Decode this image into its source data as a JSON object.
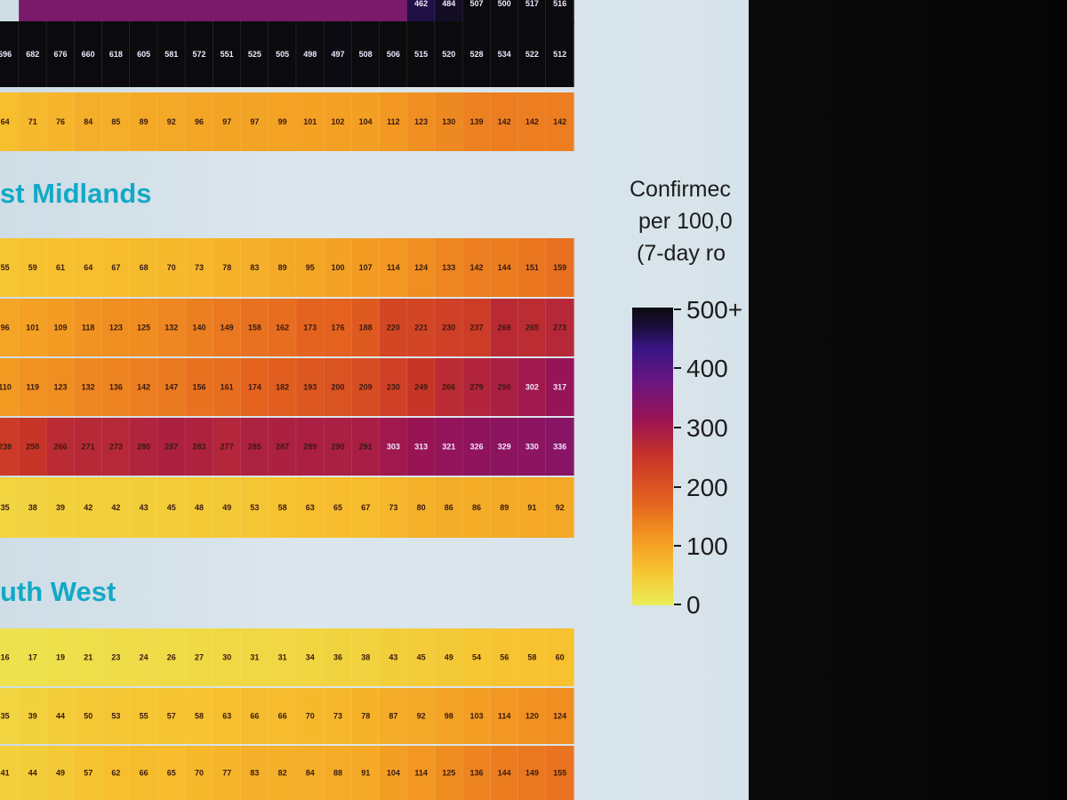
{
  "chart_data": {
    "type": "heatmap",
    "panels": [
      {
        "title": "",
        "rows": [
          {
            "values": [
              null,
              null,
              null,
              null,
              null,
              null,
              null,
              null,
              null,
              null,
              null,
              null,
              null,
              null,
              462,
              484,
              507,
              500,
              517,
              516
            ]
          },
          {
            "values": [
              696,
              682,
              676,
              660,
              618,
              605,
              581,
              572,
              551,
              525,
              505,
              498,
              497,
              508,
              506,
              515,
              520,
              528,
              534,
              522,
              512
            ]
          },
          {
            "values": [
              64,
              71,
              76,
              84,
              85,
              89,
              92,
              96,
              97,
              97,
              99,
              101,
              102,
              104,
              112,
              123,
              130,
              139,
              142,
              142,
              142
            ]
          }
        ]
      },
      {
        "title": "st Midlands",
        "rows": [
          {
            "values": [
              55,
              59,
              61,
              64,
              67,
              68,
              70,
              73,
              78,
              83,
              89,
              95,
              100,
              107,
              114,
              124,
              133,
              142,
              144,
              151,
              159
            ]
          },
          {
            "values": [
              96,
              101,
              109,
              118,
              123,
              125,
              132,
              140,
              149,
              158,
              162,
              173,
              176,
              188,
              220,
              221,
              230,
              237,
              269,
              265,
              273
            ]
          },
          {
            "values": [
              110,
              119,
              123,
              132,
              136,
              142,
              147,
              156,
              161,
              174,
              182,
              193,
              200,
              209,
              230,
              249,
              266,
              279,
              290,
              302,
              317
            ]
          },
          {
            "values": [
              238,
              250,
              266,
              271,
              273,
              280,
              287,
              283,
              277,
              285,
              287,
              289,
              290,
              291,
              303,
              313,
              321,
              326,
              329,
              330,
              336
            ]
          },
          {
            "values": [
              35,
              38,
              39,
              42,
              42,
              43,
              45,
              48,
              49,
              53,
              58,
              63,
              65,
              67,
              73,
              80,
              86,
              86,
              89,
              91,
              92
            ]
          }
        ]
      },
      {
        "title": "uth West",
        "rows": [
          {
            "values": [
              16,
              17,
              19,
              21,
              23,
              24,
              26,
              27,
              30,
              31,
              31,
              34,
              36,
              38,
              43,
              45,
              49,
              54,
              56,
              58,
              60
            ]
          },
          {
            "values": [
              35,
              39,
              44,
              50,
              53,
              55,
              57,
              58,
              63,
              66,
              66,
              70,
              73,
              78,
              87,
              92,
              98,
              103,
              114,
              120,
              124
            ]
          },
          {
            "values": [
              41,
              44,
              49,
              57,
              62,
              66,
              65,
              70,
              77,
              83,
              82,
              84,
              88,
              91,
              104,
              114,
              125,
              136,
              144,
              149,
              155
            ]
          }
        ]
      }
    ],
    "scale": {
      "min": 0,
      "max": 500
    },
    "legend": {
      "title_lines": [
        "Confirmec",
        "per 100,0",
        "(7-day ro"
      ],
      "tick_labels": [
        "500+",
        "400",
        "300",
        "200",
        "100",
        "0"
      ],
      "tick_values": [
        500,
        400,
        300,
        200,
        100,
        0
      ]
    }
  },
  "colors": {
    "region_title": "#13a9c6",
    "background": "#d7e3ea",
    "scale_low": "#e9ee58",
    "scale_high": "#0b0b0d"
  }
}
